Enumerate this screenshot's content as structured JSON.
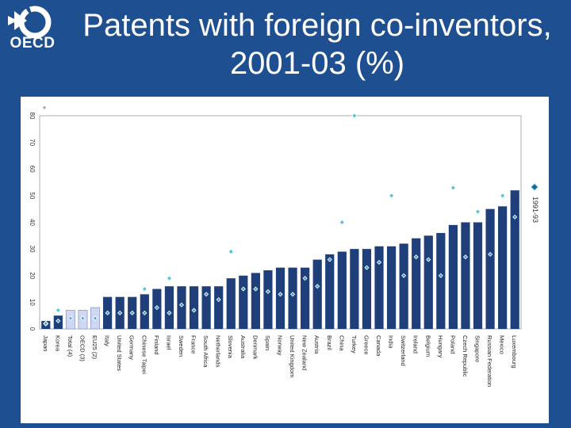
{
  "brand": {
    "logo_text": "OECD",
    "colors": {
      "background": "#1d4f91",
      "bar": "#1f3f7a",
      "bar_highlight": "#cfd8f0",
      "marker_main": "#1f5f8f",
      "marker_other": "#4fc3d9"
    }
  },
  "title": "Patents with foreign co-inventors, 2001-03 (%)",
  "chart_data": {
    "type": "bar",
    "title": "Patents with foreign co-inventors, 2001-03 (%)",
    "xlabel": "",
    "ylabel": "",
    "ylim": [
      0,
      80
    ],
    "yticks": [
      0,
      10,
      20,
      30,
      40,
      50,
      60,
      70,
      80
    ],
    "grid": false,
    "categories": [
      "Japan",
      "Korea",
      "Total (4)",
      "OECD (3)",
      "EU25 (2)",
      "Italy",
      "United States",
      "Germany",
      "Chinese Taipei",
      "Finland",
      "Israel",
      "Sweden",
      "France",
      "South Africa",
      "Netherlands",
      "Slovenia",
      "Australia",
      "Denmark",
      "Spain",
      "Norway",
      "United Kingdom",
      "New Zealand",
      "Austria",
      "Brazil",
      "China",
      "Turkey",
      "Greece",
      "Canada",
      "India",
      "Switzerland",
      "Ireland",
      "Belgium",
      "Hungary",
      "Poland",
      "Czech Republic",
      "Singapore",
      "Russian Federation",
      "Mexico",
      "Luxembourg"
    ],
    "highlighted_categories": [
      "Total (4)",
      "OECD (3)",
      "EU25 (2)"
    ],
    "series": [
      {
        "values": [
          3,
          5,
          7,
          7,
          8,
          12,
          12,
          12,
          13,
          15,
          16,
          16,
          16,
          16,
          16,
          19,
          20,
          21,
          22,
          23,
          23,
          23,
          26,
          28,
          29,
          30,
          30,
          31,
          31,
          32,
          34,
          35,
          36,
          39,
          40,
          40,
          45,
          46,
          52
        ]
      },
      {
        "name": "1991-93",
        "values": [
          2,
          7,
          null,
          null,
          null,
          null,
          null,
          null,
          15,
          null,
          19,
          null,
          null,
          null,
          null,
          29,
          null,
          null,
          null,
          null,
          null,
          null,
          null,
          null,
          40,
          80,
          null,
          null,
          50,
          null,
          null,
          null,
          null,
          53,
          null,
          44,
          null,
          50,
          null
        ]
      },
      {
        "values": [
          2,
          3,
          4,
          4,
          4,
          6,
          6,
          6,
          6,
          8,
          6,
          9,
          7,
          13,
          11,
          null,
          15,
          15,
          14,
          13,
          13,
          19,
          16,
          26,
          null,
          null,
          23,
          25,
          null,
          20,
          27,
          26,
          20,
          null,
          27,
          null,
          28,
          null,
          42
        ]
      }
    ],
    "legend": {
      "label": "1991-93",
      "placement": "right",
      "rotated": true
    },
    "stray_marker_label": "*"
  }
}
